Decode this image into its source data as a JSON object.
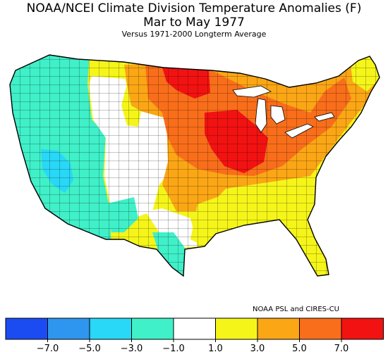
{
  "header": {
    "title": "NOAA/NCEI Climate Division Temperature Anomalies (F)",
    "period": "Mar to May 1977",
    "subtitle": "Versus 1971-2000 Longterm Average"
  },
  "credit": "NOAA PSL and CIRES-CU",
  "legend": {
    "bins": [
      {
        "color": "#1b4cf2",
        "label": "-7.0"
      },
      {
        "color": "#2f96f0",
        "label": "-5.0"
      },
      {
        "color": "#28d8f6",
        "label": "-3.0"
      },
      {
        "color": "#3ff0c8",
        "label": "-1.0"
      },
      {
        "color": "#ffffff",
        "label": "1.0"
      },
      {
        "color": "#f5f51a",
        "label": "3.0"
      },
      {
        "color": "#fba615",
        "label": "5.0"
      },
      {
        "color": "#f96e1a",
        "label": "7.0"
      },
      {
        "color": "#f21212",
        "label": ""
      }
    ]
  },
  "map_regions": [
    {
      "name": "pacific-northwest",
      "anomaly_class": -1.5
    },
    {
      "name": "california-nevada",
      "anomaly_class": -1.5
    },
    {
      "name": "southern-nevada-arizona-west",
      "anomaly_class": -3.5
    },
    {
      "name": "colorado-plateau",
      "anomaly_class": 0
    },
    {
      "name": "northern-plains-west",
      "anomaly_class": 1.5
    },
    {
      "name": "upper-midwest",
      "anomaly_class": 5.5
    },
    {
      "name": "minnesota-north",
      "anomaly_class": 7.5
    },
    {
      "name": "iowa-wisconsin",
      "anomaly_class": 7.5
    },
    {
      "name": "central-plains",
      "anomaly_class": 3.5
    },
    {
      "name": "ohio-valley-northeast",
      "anomaly_class": 5.5
    },
    {
      "name": "southeast",
      "anomaly_class": 1.5
    },
    {
      "name": "south-texas",
      "anomaly_class": -1.5
    },
    {
      "name": "maine",
      "anomaly_class": 1.5
    }
  ]
}
